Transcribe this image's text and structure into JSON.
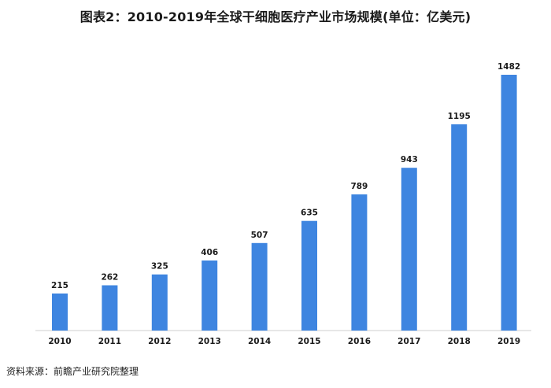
{
  "chart_data": {
    "type": "bar",
    "title": "图表2：2010-2019年全球干细胞医疗产业市场规模(单位：亿美元)",
    "categories": [
      "2010",
      "2011",
      "2012",
      "2013",
      "2014",
      "2015",
      "2016",
      "2017",
      "2018",
      "2019"
    ],
    "values": [
      215,
      262,
      325,
      406,
      507,
      635,
      789,
      943,
      1195,
      1482
    ],
    "data_labels": [
      "215",
      "262",
      "325",
      "406",
      "507",
      "635",
      "789",
      "943",
      "1195",
      "1482"
    ],
    "xlabel": "",
    "ylabel": "",
    "ylim": [
      0,
      1482
    ],
    "grid": false,
    "legend": "none",
    "bar_color": "#3e85e0"
  },
  "source": "资料来源：前瞻产业研究院整理"
}
